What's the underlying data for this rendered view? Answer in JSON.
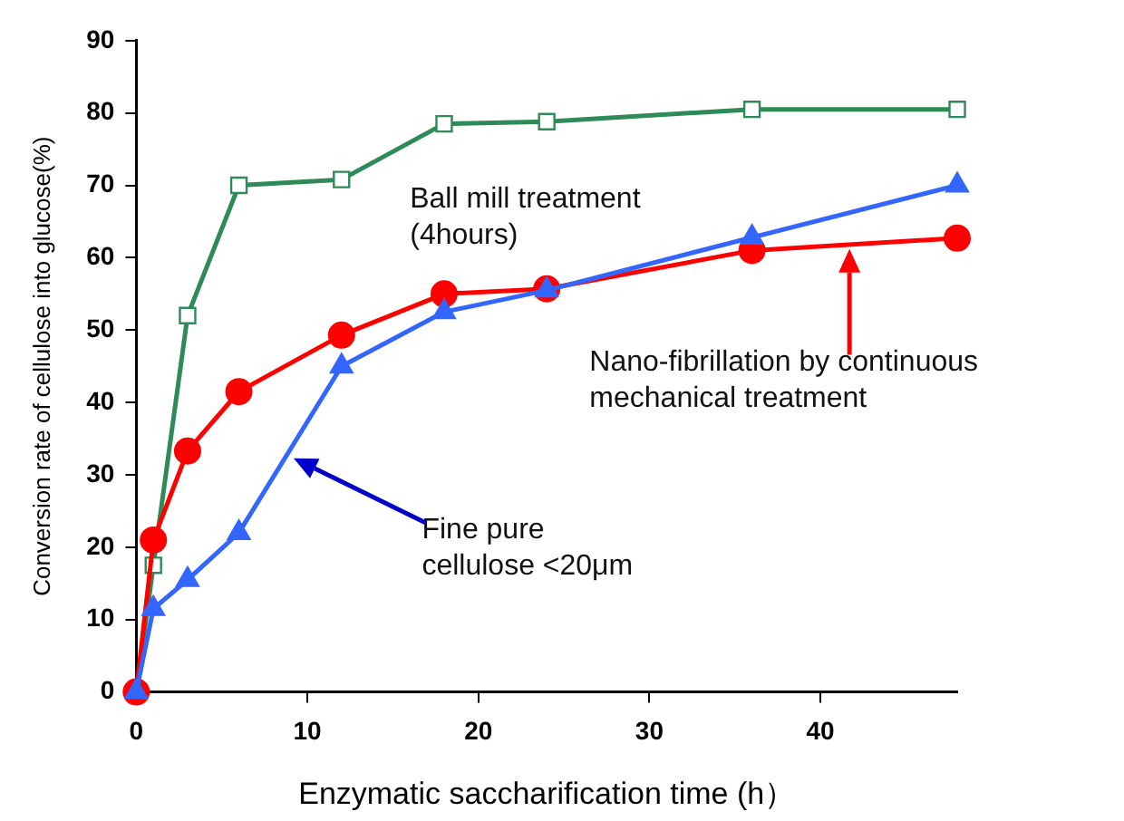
{
  "chart_data": {
    "type": "line",
    "xlabel": "Enzymatic saccharification time (h）",
    "ylabel": "Conversion rate of cellulose into glucose(%)",
    "x": [
      0,
      1,
      3,
      6,
      12,
      18,
      24,
      36,
      48
    ],
    "series": [
      {
        "color": "#2e8b57",
        "marker": "square",
        "values": [
          0,
          17.5,
          52,
          70,
          70.8,
          78.5,
          78.8,
          80.5,
          80.5
        ]
      },
      {
        "color": "#ff0000",
        "marker": "circle",
        "values": [
          0,
          21,
          33.3,
          41.5,
          49.3,
          55,
          55.7,
          61,
          62.7
        ]
      },
      {
        "color": "#3366ff",
        "marker": "triangle",
        "values": [
          0,
          11.5,
          15.5,
          22,
          45,
          52.5,
          55.5,
          62.8,
          70
        ]
      }
    ],
    "xlim": [
      0,
      48
    ],
    "xticks": [
      0,
      10,
      20,
      30,
      40
    ],
    "ylim": [
      0,
      90
    ],
    "yticks": [
      0,
      10,
      20,
      30,
      40,
      50,
      60,
      70,
      80,
      90
    ],
    "annotations": [
      "Ball mill treatment (4hours)",
      "Nano-fibrillation by continuous mechanical treatment",
      "Fine pure cellulose <20μm"
    ],
    "grid": false,
    "legend": false,
    "line_style": "solid"
  }
}
